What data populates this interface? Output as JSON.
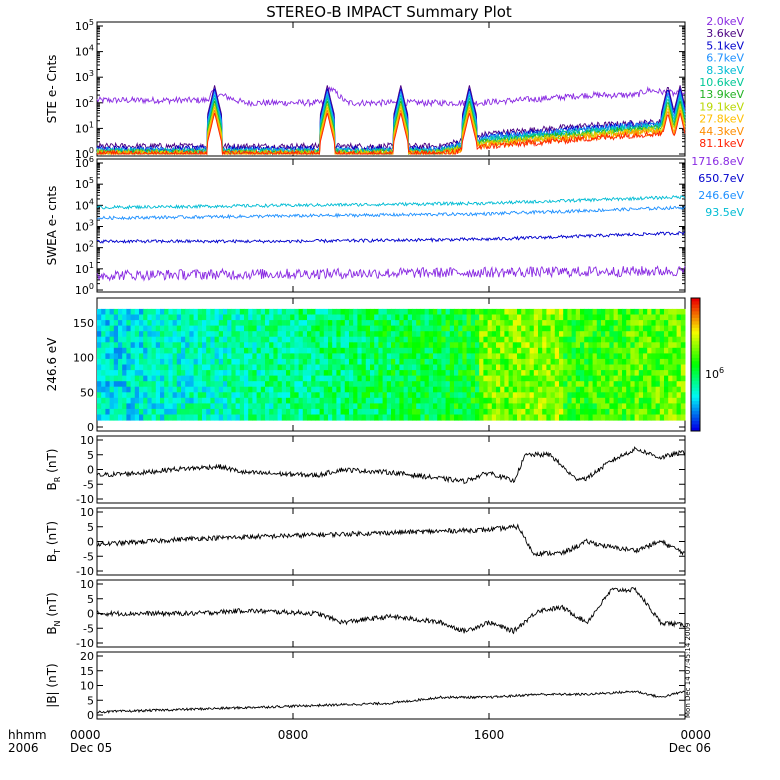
{
  "title": "STEREO-B IMPACT Summary Plot",
  "colors": {
    "axis": "#000000",
    "trace": "#000000",
    "background": "#ffffff"
  },
  "panels": [
    {
      "key": "ste",
      "ylabel": "STE e- Cnts",
      "scale": "log",
      "yticks": [
        "10^0",
        "10^1",
        "10^2",
        "10^3",
        "10^4",
        "10^5"
      ],
      "legend_title": "",
      "legend": [
        {
          "label": "2.0keV",
          "color": "#8a2be2"
        },
        {
          "label": "3.6keV",
          "color": "#4b0082"
        },
        {
          "label": "5.1keV",
          "color": "#0000cd"
        },
        {
          "label": "6.7keV",
          "color": "#1e90ff"
        },
        {
          "label": "8.3keV",
          "color": "#00bcd4"
        },
        {
          "label": "10.6keV",
          "color": "#00c896"
        },
        {
          "label": "13.9keV",
          "color": "#22b222"
        },
        {
          "label": "19.1keV",
          "color": "#b8d800"
        },
        {
          "label": "27.8keV",
          "color": "#ffc000"
        },
        {
          "label": "44.3keV",
          "color": "#ff8c00"
        },
        {
          "label": "81.1keV",
          "color": "#ff2000"
        }
      ]
    },
    {
      "key": "swea",
      "ylabel": "SWEA e- cnts",
      "scale": "log",
      "yticks": [
        "10^0",
        "10^1",
        "10^2",
        "10^3",
        "10^4",
        "10^5",
        "10^6"
      ],
      "legend": [
        {
          "label": "1716.8eV",
          "color": "#8a2be2"
        },
        {
          "label": "650.7eV",
          "color": "#0000cd"
        },
        {
          "label": "246.6eV",
          "color": "#1e90ff"
        },
        {
          "label": "93.5eV",
          "color": "#00bcd4"
        }
      ]
    },
    {
      "key": "pad",
      "ylabel": "246.6 eV",
      "scale": "linear",
      "yticks": [
        "0",
        "50",
        "100",
        "150"
      ],
      "colorbar_label": "10^6"
    },
    {
      "key": "br",
      "ylabel": "B_R (nT)",
      "ylabel_main": "B",
      "ylabel_sub": "R",
      "ylabel_unit": "(nT)",
      "yticks": [
        "-10",
        "-5",
        "0",
        "5",
        "10"
      ]
    },
    {
      "key": "bt",
      "ylabel": "B_T (nT)",
      "ylabel_main": "B",
      "ylabel_sub": "T",
      "ylabel_unit": "(nT)",
      "yticks": [
        "-10",
        "-5",
        "0",
        "5",
        "10"
      ]
    },
    {
      "key": "bn",
      "ylabel": "B_N (nT)",
      "ylabel_main": "B",
      "ylabel_sub": "N",
      "ylabel_unit": "(nT)",
      "yticks": [
        "-10",
        "-5",
        "0",
        "5",
        "10"
      ]
    },
    {
      "key": "bmag",
      "ylabel": "|B| (nT)",
      "yticks": [
        "0",
        "5",
        "10",
        "15",
        "20"
      ]
    }
  ],
  "xaxis": {
    "label_hhmm": "hhmm",
    "label_year": "2006",
    "ticks": [
      {
        "time": "0000",
        "date": "Dec 05"
      },
      {
        "time": "0800",
        "date": ""
      },
      {
        "time": "1600",
        "date": ""
      },
      {
        "time": "0000",
        "date": "Dec 06"
      }
    ]
  },
  "footer_stamp": "Mon Dec 14 07:45:14 2009",
  "chart_data": {
    "type": "line",
    "title": "STEREO-B IMPACT Summary Plot",
    "x_range_hours": [
      0,
      24
    ],
    "x_ticks_hours": [
      0,
      8,
      16,
      24
    ],
    "ste": {
      "ylim_log10": [
        0,
        5
      ],
      "spikes_hours": [
        4.8,
        9.4,
        12.4,
        15.2,
        23.3,
        23.8
      ],
      "series": [
        {
          "name": "2.0keV",
          "log_knots": [
            [
              0,
              2.1
            ],
            [
              4.5,
              2.1
            ],
            [
              4.7,
              2.4
            ],
            [
              5.4,
              2.2
            ],
            [
              6,
              2.0
            ],
            [
              9.3,
              2.0
            ],
            [
              9.5,
              2.6
            ],
            [
              10.2,
              2.0
            ],
            [
              15.5,
              2.0
            ],
            [
              18,
              2.15
            ],
            [
              20,
              2.3
            ],
            [
              22,
              2.3
            ],
            [
              22.5,
              2.5
            ],
            [
              24,
              2.3
            ]
          ]
        },
        {
          "name": "3.6keV",
          "log_knots": [
            [
              0,
              0.3
            ],
            [
              14,
              0.3
            ],
            [
              16,
              0.8
            ],
            [
              20,
              1.1
            ],
            [
              22,
              1.2
            ],
            [
              24,
              1.3
            ]
          ]
        },
        {
          "name": "5.1keV",
          "log_knots": [
            [
              0,
              0.2
            ],
            [
              14,
              0.2
            ],
            [
              16,
              0.7
            ],
            [
              20,
              1.0
            ],
            [
              22,
              1.15
            ],
            [
              24,
              1.25
            ]
          ]
        },
        {
          "name": "6.7keV",
          "log_knots": [
            [
              0,
              0.15
            ],
            [
              14,
              0.15
            ],
            [
              16,
              0.65
            ],
            [
              20,
              0.95
            ],
            [
              22,
              1.1
            ],
            [
              24,
              1.2
            ]
          ]
        },
        {
          "name": "8.3keV",
          "log_knots": [
            [
              0,
              0.1
            ],
            [
              14,
              0.1
            ],
            [
              16,
              0.6
            ],
            [
              20,
              0.9
            ],
            [
              22,
              1.05
            ],
            [
              24,
              1.15
            ]
          ]
        },
        {
          "name": "10.6keV",
          "log_knots": [
            [
              0,
              0.1
            ],
            [
              14,
              0.1
            ],
            [
              16,
              0.55
            ],
            [
              20,
              0.85
            ],
            [
              22,
              1.0
            ],
            [
              24,
              1.1
            ]
          ]
        },
        {
          "name": "13.9keV",
          "log_knots": [
            [
              0,
              0.05
            ],
            [
              14,
              0.05
            ],
            [
              16,
              0.5
            ],
            [
              20,
              0.8
            ],
            [
              22,
              0.95
            ],
            [
              24,
              1.05
            ]
          ]
        },
        {
          "name": "19.1keV",
          "log_knots": [
            [
              0,
              0.05
            ],
            [
              14,
              0.05
            ],
            [
              16,
              0.45
            ],
            [
              20,
              0.75
            ],
            [
              22,
              0.9
            ],
            [
              24,
              1.0
            ]
          ]
        },
        {
          "name": "27.8keV",
          "log_knots": [
            [
              0,
              0.0
            ],
            [
              14,
              0.0
            ],
            [
              16,
              0.4
            ],
            [
              20,
              0.7
            ],
            [
              22,
              0.85
            ],
            [
              24,
              0.95
            ]
          ]
        },
        {
          "name": "44.3keV",
          "log_knots": [
            [
              0,
              0.0
            ],
            [
              14,
              0.0
            ],
            [
              16,
              0.35
            ],
            [
              20,
              0.65
            ],
            [
              22,
              0.8
            ],
            [
              24,
              0.9
            ]
          ]
        },
        {
          "name": "81.1keV",
          "log_knots": [
            [
              0,
              0.0
            ],
            [
              14,
              0.0
            ],
            [
              16,
              0.3
            ],
            [
              20,
              0.6
            ],
            [
              22,
              0.75
            ],
            [
              24,
              0.85
            ]
          ]
        }
      ]
    },
    "swea": {
      "ylim_log10": [
        0,
        6
      ],
      "series": [
        {
          "name": "1716.8eV",
          "log_knots": [
            [
              0,
              0.7
            ],
            [
              24,
              0.9
            ]
          ]
        },
        {
          "name": "650.7eV",
          "log_knots": [
            [
              0,
              2.3
            ],
            [
              8,
              2.3
            ],
            [
              16,
              2.4
            ],
            [
              24,
              2.7
            ]
          ]
        },
        {
          "name": "246.6eV",
          "log_knots": [
            [
              0,
              3.4
            ],
            [
              8,
              3.5
            ],
            [
              16,
              3.6
            ],
            [
              24,
              3.9
            ]
          ]
        },
        {
          "name": "93.5eV",
          "log_knots": [
            [
              0,
              3.9
            ],
            [
              8,
              4.0
            ],
            [
              16,
              4.1
            ],
            [
              24,
              4.4
            ]
          ]
        }
      ]
    },
    "pad": {
      "ylim": [
        0,
        180
      ],
      "data_ylim": [
        10,
        170
      ],
      "colorbar": "rainbow"
    },
    "br": {
      "ylim": [
        -10,
        10
      ],
      "knots": [
        [
          0,
          -2
        ],
        [
          2,
          -1
        ],
        [
          3,
          0
        ],
        [
          5,
          1
        ],
        [
          6,
          -1
        ],
        [
          9,
          -2
        ],
        [
          10,
          0
        ],
        [
          12,
          -1
        ],
        [
          14,
          -3
        ],
        [
          15,
          -4
        ],
        [
          16,
          -1
        ],
        [
          17,
          -4
        ],
        [
          17.5,
          5
        ],
        [
          18.5,
          5
        ],
        [
          19.5,
          -3
        ],
        [
          20,
          -3
        ],
        [
          21,
          3
        ],
        [
          22,
          7
        ],
        [
          23,
          4
        ],
        [
          24,
          6
        ]
      ]
    },
    "bt": {
      "ylim": [
        -10,
        10
      ],
      "knots": [
        [
          0,
          -1
        ],
        [
          4,
          1
        ],
        [
          8,
          2
        ],
        [
          12,
          3
        ],
        [
          16,
          4
        ],
        [
          17.2,
          5
        ],
        [
          17.8,
          -4
        ],
        [
          19,
          -4
        ],
        [
          20,
          0
        ],
        [
          21,
          -2
        ],
        [
          22,
          -3
        ],
        [
          23,
          0
        ],
        [
          24,
          -4
        ]
      ]
    },
    "bn": {
      "ylim": [
        -10,
        10
      ],
      "knots": [
        [
          0,
          0
        ],
        [
          4,
          0
        ],
        [
          6,
          1
        ],
        [
          9,
          0
        ],
        [
          10,
          -3
        ],
        [
          12,
          -1
        ],
        [
          14,
          -3
        ],
        [
          15,
          -6
        ],
        [
          16,
          -3
        ],
        [
          17,
          -6
        ],
        [
          18,
          1
        ],
        [
          19,
          2
        ],
        [
          20,
          -3
        ],
        [
          21,
          8
        ],
        [
          22,
          8
        ],
        [
          23,
          -3
        ],
        [
          24,
          -4
        ]
      ]
    },
    "bmag": {
      "ylim": [
        0,
        20
      ],
      "knots": [
        [
          0,
          1
        ],
        [
          4,
          2
        ],
        [
          8,
          3
        ],
        [
          12,
          4
        ],
        [
          14,
          6
        ],
        [
          16,
          6
        ],
        [
          18,
          7
        ],
        [
          20,
          7
        ],
        [
          22,
          8
        ],
        [
          23,
          6
        ],
        [
          24,
          8
        ]
      ]
    }
  }
}
